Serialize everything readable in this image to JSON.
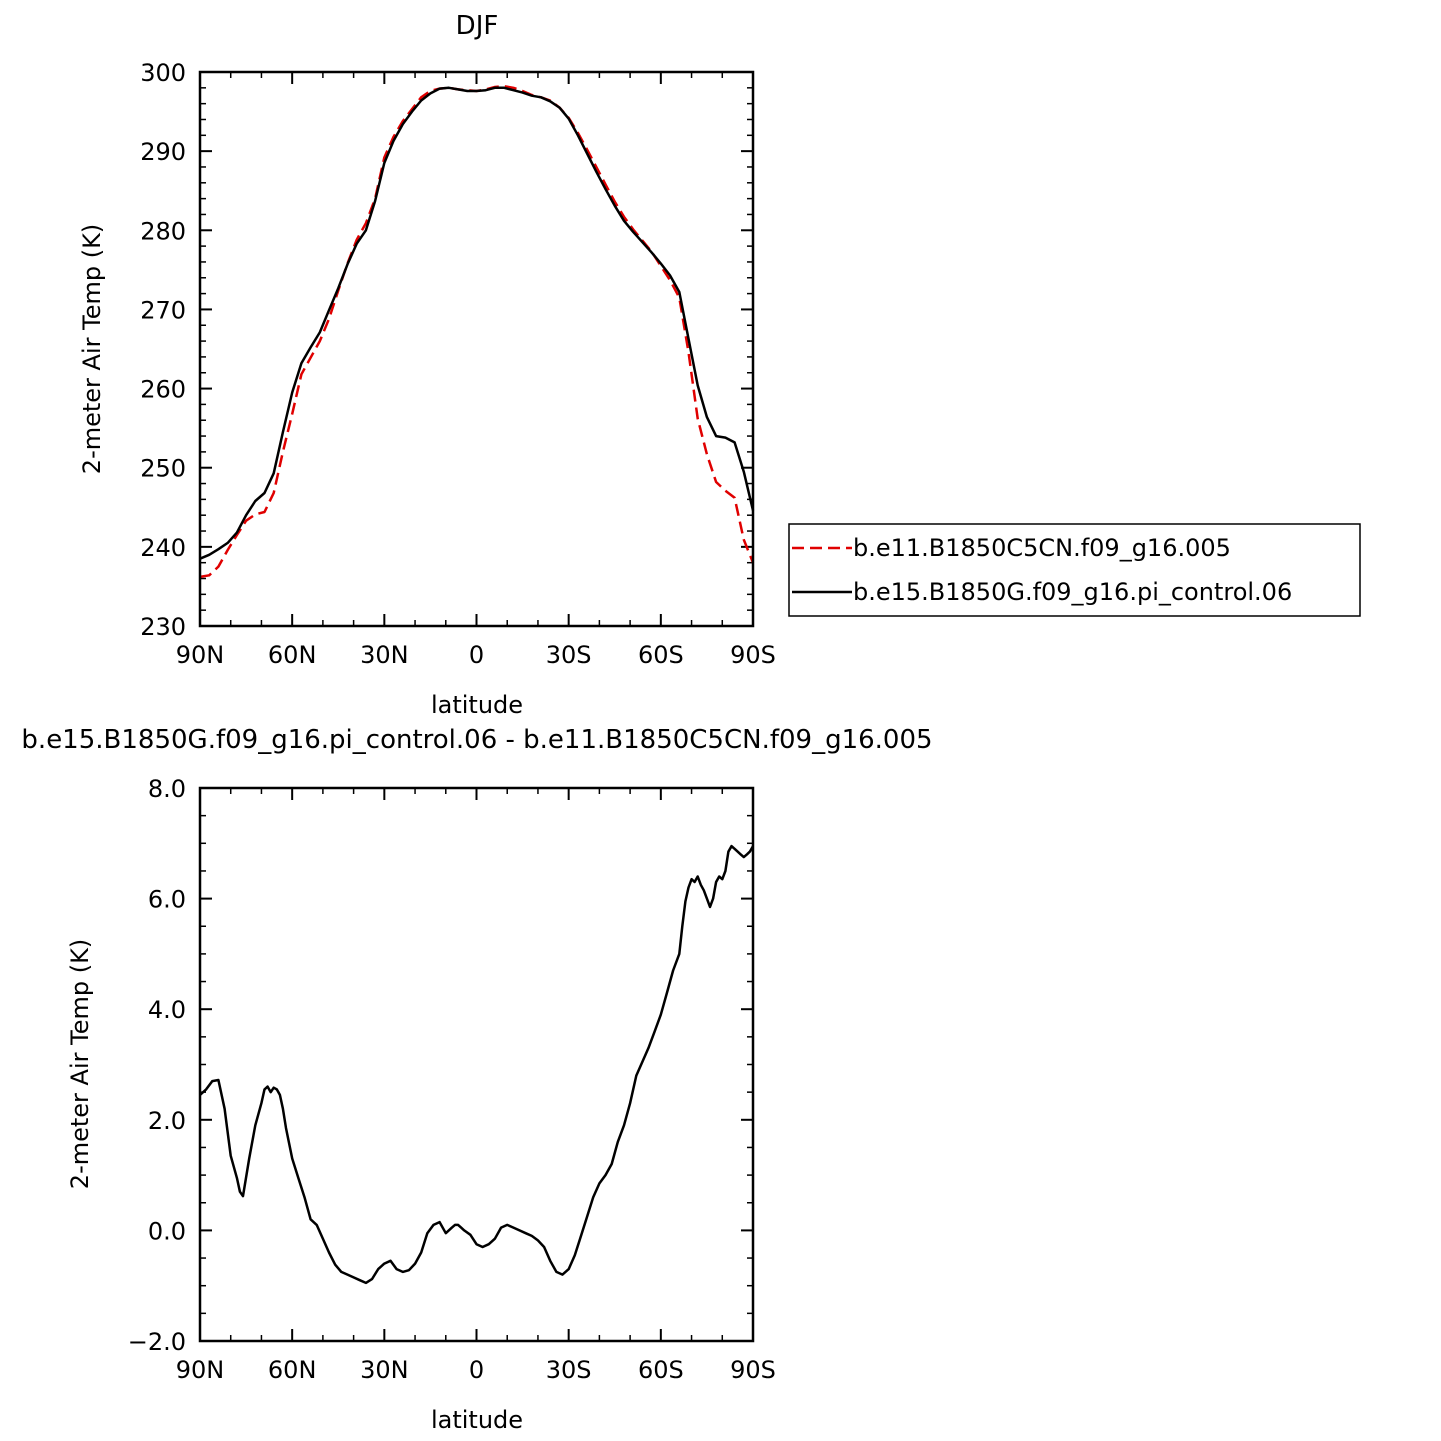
{
  "chart_data": [
    {
      "type": "line",
      "title": "DJF",
      "xlabel": "latitude",
      "ylabel": "2-meter Air Temp (K)",
      "xlim": [
        90,
        -90
      ],
      "ylim": [
        230,
        300
      ],
      "x_ticks": [
        90,
        60,
        30,
        0,
        -30,
        -60,
        -90
      ],
      "x_tick_labels": [
        "90N",
        "60N",
        "30N",
        "0",
        "30S",
        "60S",
        "90S"
      ],
      "y_ticks": [
        230,
        240,
        250,
        260,
        270,
        280,
        290,
        300
      ],
      "y_tick_labels": [
        "230",
        "240",
        "250",
        "260",
        "270",
        "280",
        "290",
        "300"
      ],
      "grid": false,
      "legend": "right",
      "x": [
        90,
        87,
        84,
        81,
        78,
        75,
        72,
        69,
        66,
        63,
        60,
        57,
        54,
        51,
        48,
        45,
        42,
        39,
        36,
        33,
        30,
        27,
        24,
        21,
        18,
        15,
        12,
        9,
        6,
        3,
        0,
        -3,
        -6,
        -9,
        -12,
        -15,
        -18,
        -21,
        -24,
        -27,
        -30,
        -33,
        -36,
        -39,
        -42,
        -45,
        -48,
        -51,
        -54,
        -57,
        -60,
        -63,
        -66,
        -69,
        -72,
        -75,
        -78,
        -81,
        -84,
        -87,
        -90
      ],
      "series": [
        {
          "name": "b.e11.B1850C5CN.f09_g16.005",
          "color": "#e00000",
          "dash": "dashed",
          "values": [
            236.2,
            236.4,
            237.5,
            239.6,
            241.5,
            243.3,
            244.1,
            244.4,
            246.8,
            252.0,
            256.8,
            261.8,
            263.9,
            266.0,
            268.8,
            272.4,
            275.8,
            278.8,
            280.9,
            284.0,
            289.2,
            291.8,
            293.8,
            295.3,
            296.8,
            297.6,
            297.9,
            298.0,
            297.8,
            297.7,
            297.6,
            297.8,
            298.1,
            298.2,
            298.0,
            297.6,
            297.1,
            296.8,
            296.4,
            295.5,
            294.2,
            292.3,
            290.2,
            288.0,
            285.8,
            283.6,
            281.7,
            280.1,
            278.7,
            277.3,
            275.5,
            273.7,
            271.5,
            264.6,
            256.2,
            251.7,
            248.2,
            247.1,
            246.2,
            240.9,
            238.0
          ]
        },
        {
          "name": "b.e15.B1850G.f09_g16.pi_control.06",
          "color": "#000000",
          "dash": "solid",
          "values": [
            238.5,
            239.0,
            239.7,
            240.5,
            241.8,
            244.0,
            245.8,
            246.8,
            249.3,
            254.5,
            259.5,
            263.2,
            265.2,
            267.1,
            269.9,
            272.7,
            275.7,
            278.3,
            280.0,
            283.7,
            288.5,
            291.3,
            293.4,
            295.0,
            296.4,
            297.3,
            297.9,
            298.0,
            297.8,
            297.6,
            297.6,
            297.7,
            298.0,
            298.0,
            297.7,
            297.4,
            297.0,
            296.8,
            296.3,
            295.5,
            294.1,
            292.0,
            289.7,
            287.4,
            285.2,
            283.1,
            281.2,
            279.8,
            278.5,
            277.2,
            275.8,
            274.3,
            272.2,
            266.3,
            260.4,
            256.4,
            254.0,
            253.8,
            253.2,
            249.5,
            244.6
          ]
        }
      ]
    },
    {
      "type": "line",
      "title": "b.e15.B1850G.f09_g16.pi_control.06 - b.e11.B1850C5CN.f09_g16.005",
      "xlabel": "latitude",
      "ylabel": "2-meter Air Temp (K)",
      "xlim": [
        90,
        -90
      ],
      "ylim": [
        -2.0,
        8.0
      ],
      "x_ticks": [
        90,
        60,
        30,
        0,
        -30,
        -60,
        -90
      ],
      "x_tick_labels": [
        "90N",
        "60N",
        "30N",
        "0",
        "30S",
        "60S",
        "90S"
      ],
      "y_ticks": [
        -2.0,
        0.0,
        2.0,
        4.0,
        6.0,
        8.0
      ],
      "y_tick_labels": [
        "−2.0",
        "0.0",
        "2.0",
        "4.0",
        "6.0",
        "8.0"
      ],
      "grid": false,
      "x": [
        90,
        88,
        86,
        84,
        82,
        80,
        78,
        77,
        76,
        74,
        72,
        70,
        69,
        68,
        67,
        66,
        65,
        64,
        63,
        62,
        60,
        58,
        56,
        54,
        52,
        50,
        48,
        46,
        44,
        42,
        40,
        38,
        36,
        34,
        32,
        30,
        28,
        26,
        24,
        22,
        20,
        18,
        16,
        14,
        12,
        10,
        8,
        7,
        6,
        5,
        4,
        2,
        0,
        -2,
        -4,
        -6,
        -8,
        -10,
        -12,
        -14,
        -16,
        -18,
        -20,
        -22,
        -24,
        -26,
        -28,
        -30,
        -32,
        -34,
        -36,
        -38,
        -40,
        -42,
        -44,
        -46,
        -48,
        -50,
        -52,
        -54,
        -56,
        -58,
        -60,
        -62,
        -64,
        -66,
        -67,
        -68,
        -69,
        -70,
        -71,
        -72,
        -73,
        -74,
        -75,
        -76,
        -77,
        -78,
        -79,
        -80,
        -81,
        -82,
        -83,
        -84,
        -85,
        -86,
        -87,
        -88,
        -89,
        -90
      ],
      "series": [
        {
          "name": "",
          "color": "#000000",
          "dash": "solid",
          "values": [
            2.45,
            2.55,
            2.7,
            2.72,
            2.2,
            1.35,
            0.95,
            0.7,
            0.62,
            1.3,
            1.9,
            2.3,
            2.55,
            2.6,
            2.5,
            2.58,
            2.55,
            2.45,
            2.2,
            1.85,
            1.3,
            0.95,
            0.6,
            0.2,
            0.1,
            -0.15,
            -0.4,
            -0.62,
            -0.75,
            -0.8,
            -0.85,
            -0.9,
            -0.95,
            -0.88,
            -0.7,
            -0.6,
            -0.55,
            -0.7,
            -0.75,
            -0.72,
            -0.6,
            -0.4,
            -0.05,
            0.1,
            0.15,
            -0.05,
            0.05,
            0.1,
            0.1,
            0.05,
            0.0,
            -0.08,
            -0.25,
            -0.3,
            -0.25,
            -0.15,
            0.05,
            0.1,
            0.05,
            0.0,
            -0.05,
            -0.1,
            -0.18,
            -0.3,
            -0.55,
            -0.75,
            -0.8,
            -0.7,
            -0.45,
            -0.1,
            0.25,
            0.6,
            0.85,
            1.0,
            1.2,
            1.6,
            1.9,
            2.3,
            2.8,
            3.05,
            3.3,
            3.6,
            3.9,
            4.3,
            4.7,
            5.0,
            5.5,
            5.95,
            6.2,
            6.35,
            6.3,
            6.4,
            6.25,
            6.15,
            6.0,
            5.85,
            6.0,
            6.3,
            6.4,
            6.35,
            6.5,
            6.85,
            6.95,
            6.9,
            6.85,
            6.8,
            6.75,
            6.8,
            6.85,
            6.95
          ]
        }
      ]
    }
  ]
}
